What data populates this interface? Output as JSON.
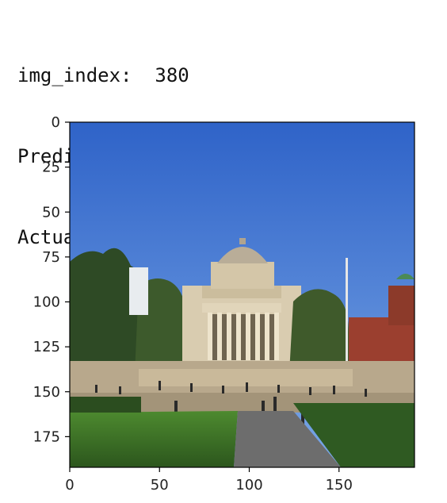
{
  "caption": {
    "line1": "img_index:  380",
    "line2": "Prediction:  Low Library",
    "line3": "Actual:  Low Library"
  },
  "axes": {
    "x_ticks": [
      0,
      50,
      100,
      150
    ],
    "y_ticks": [
      0,
      25,
      50,
      75,
      100,
      125,
      150,
      175
    ],
    "x_range": [
      0,
      192
    ],
    "y_range": [
      0,
      192
    ]
  },
  "image": {
    "subject": "Low Library building with columned facade and dome, people on steps and lawn",
    "sky_color": "#3b6fd0",
    "grass_color": "#3a6b26"
  }
}
